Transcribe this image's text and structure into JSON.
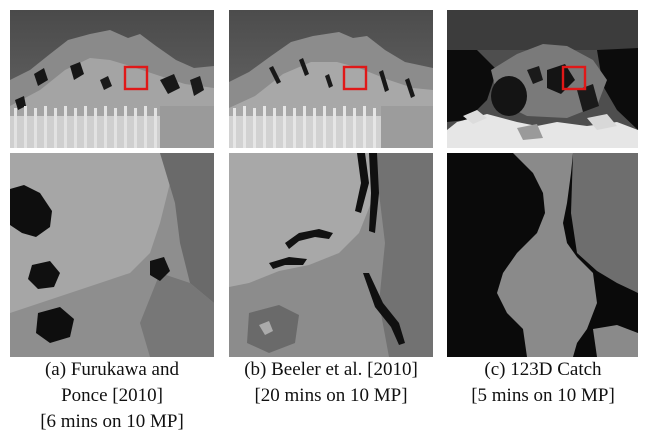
{
  "figure": {
    "panels": [
      {
        "id": "a",
        "caption_lines": [
          "(a) Furukawa and",
          "Ponce [2010]",
          "[6 mins on 10 MP]"
        ]
      },
      {
        "id": "b",
        "caption_lines": [
          "(b) Beeler et al. [2010]",
          "[20 mins on 10 MP]"
        ]
      },
      {
        "id": "c",
        "caption_lines": [
          "(c) 123D Catch",
          "[5 mins on 10 MP]"
        ]
      }
    ],
    "colors": {
      "highlight_box": "#e01818",
      "depth_dark": "#111111",
      "depth_mid": "#888888",
      "depth_light": "#c2c2c2"
    }
  }
}
